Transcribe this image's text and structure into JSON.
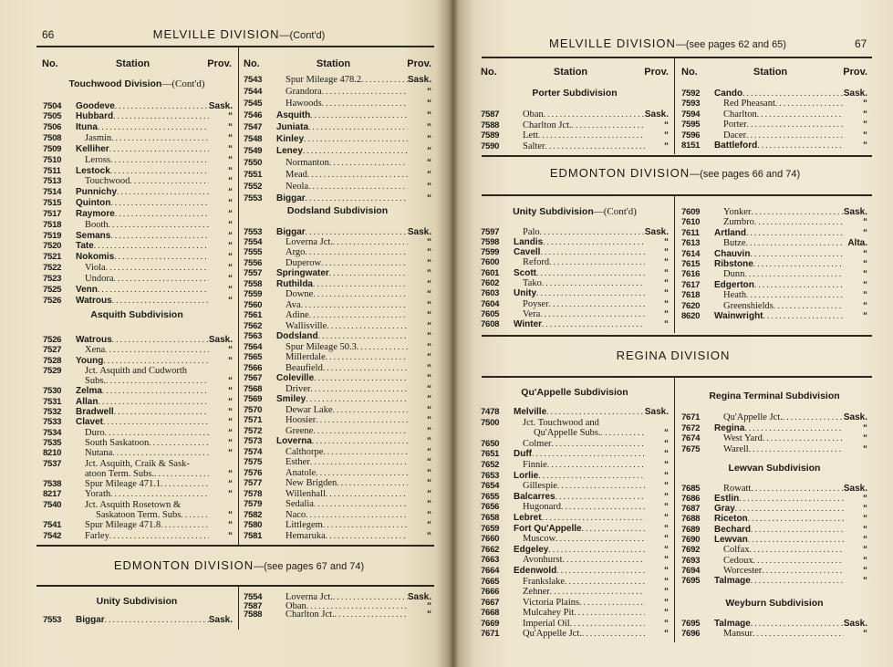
{
  "left_page": {
    "page_number": "66",
    "title": "MELVILLE DIVISION",
    "title_suffix": "—(Cont'd)",
    "col_headers": {
      "no": "No.",
      "station": "Station",
      "prov": "Prov."
    },
    "touchwood": {
      "heading": "Touchwood Division",
      "heading_suffix": "—(Cont'd)",
      "rows": [
        {
          "no": "7504",
          "name": "Goodeve",
          "prov": "Sask.",
          "bold": true
        },
        {
          "no": "7505",
          "name": "Hubbard",
          "prov": "“",
          "bold": true
        },
        {
          "no": "7506",
          "name": "Ituna",
          "prov": "“",
          "bold": true
        },
        {
          "no": "7508",
          "name": "Jasmin",
          "prov": "“"
        },
        {
          "no": "7509",
          "name": "Kelliher",
          "prov": "“",
          "bold": true
        },
        {
          "no": "7510",
          "name": "Leross",
          "prov": "“"
        },
        {
          "no": "7511",
          "name": "Lestock",
          "prov": "“",
          "bold": true
        },
        {
          "no": "7513",
          "name": "Touchwood",
          "prov": "“"
        },
        {
          "no": "7514",
          "name": "Punnichy",
          "prov": "“",
          "bold": true
        },
        {
          "no": "7515",
          "name": "Quinton",
          "prov": "“",
          "bold": true
        },
        {
          "no": "7517",
          "name": "Raymore",
          "prov": "“",
          "bold": true
        },
        {
          "no": "7518",
          "name": "Booth",
          "prov": "“"
        },
        {
          "no": "7519",
          "name": "Semans",
          "prov": "“",
          "bold": true
        },
        {
          "no": "7520",
          "name": "Tate",
          "prov": "“",
          "bold": true
        },
        {
          "no": "7521",
          "name": "Nokomis",
          "prov": "“",
          "bold": true
        },
        {
          "no": "7522",
          "name": "Viola",
          "prov": "“"
        },
        {
          "no": "7523",
          "name": "Undora",
          "prov": "“"
        },
        {
          "no": "7525",
          "name": "Venn",
          "prov": "“",
          "bold": true
        },
        {
          "no": "7526",
          "name": "Watrous",
          "prov": "“",
          "bold": true
        }
      ]
    },
    "asquith": {
      "heading": "Asquith Subdivision",
      "rows": [
        {
          "no": "7526",
          "name": "Watrous",
          "prov": "Sask.",
          "bold": true
        },
        {
          "no": "7527",
          "name": "Xena",
          "prov": "“"
        },
        {
          "no": "7528",
          "name": "Young",
          "prov": "“",
          "bold": true
        },
        {
          "no": "7529",
          "name": "Jct. Asquith and Cudworth",
          "line2": "Subs.",
          "prov": "“"
        },
        {
          "no": "7530",
          "name": "Zelma",
          "prov": "“",
          "bold": true
        },
        {
          "no": "7531",
          "name": "Allan",
          "prov": "“",
          "bold": true
        },
        {
          "no": "7532",
          "name": "Bradwell",
          "prov": "“",
          "bold": true
        },
        {
          "no": "7533",
          "name": "Clavet",
          "prov": "“",
          "bold": true
        },
        {
          "no": "7534",
          "name": "Duro",
          "prov": "“"
        },
        {
          "no": "7535",
          "name": "South Saskatoon",
          "prov": "“"
        },
        {
          "no": "8210",
          "name": "Nutana",
          "prov": "“"
        },
        {
          "no": "7537",
          "name": "Jct. Asquith, Craik & Sask-",
          "line2": "atoon Term. Subs.",
          "prov": "“"
        },
        {
          "no": "7538",
          "name": "Spur Mileage 471.1",
          "prov": "“"
        },
        {
          "no": "8217",
          "name": "Yorath",
          "prov": "“"
        },
        {
          "no": "7540",
          "name": "Jct. Asquith Rosetown &",
          "line2": "Saskatoon Term. Subs",
          "line2_wide": true,
          "prov": "“"
        },
        {
          "no": "7541",
          "name": "Spur Mileage 471.8",
          "prov": "“"
        },
        {
          "no": "7542",
          "name": "Farley",
          "prov": "“"
        }
      ]
    },
    "asquith_cont": {
      "rows": [
        {
          "no": "7543",
          "name": "Spur Mileage 478.2",
          "prov": "Sask."
        },
        {
          "no": "7544",
          "name": "Grandora",
          "prov": "“"
        },
        {
          "no": "7545",
          "name": "Hawoods",
          "prov": "“"
        },
        {
          "no": "7546",
          "name": "Asquith",
          "prov": "“",
          "bold": true
        },
        {
          "no": "7547",
          "name": "Juniata",
          "prov": "“",
          "bold": true
        },
        {
          "no": "7548",
          "name": "Kinley",
          "prov": "“",
          "bold": true
        },
        {
          "no": "7549",
          "name": "Leney",
          "prov": "“",
          "bold": true
        },
        {
          "no": "7550",
          "name": "Normanton",
          "prov": "“"
        },
        {
          "no": "7551",
          "name": "Mead",
          "prov": "“"
        },
        {
          "no": "7552",
          "name": "Neola",
          "prov": "“"
        },
        {
          "no": "7553",
          "name": "Biggar",
          "prov": "“",
          "bold": true
        }
      ]
    },
    "dodsland": {
      "heading": "Dodsland Subdivision",
      "rows": [
        {
          "no": "7553",
          "name": "Biggar",
          "prov": "Sask.",
          "bold": true
        },
        {
          "no": "7554",
          "name": "Loverna Jct.",
          "prov": "“"
        },
        {
          "no": "7555",
          "name": "Argo",
          "prov": "“"
        },
        {
          "no": "7556",
          "name": "Duperow",
          "prov": "“"
        },
        {
          "no": "7557",
          "name": "Springwater",
          "prov": "“",
          "bold": true
        },
        {
          "no": "7558",
          "name": "Ruthilda",
          "prov": "“",
          "bold": true
        },
        {
          "no": "7559",
          "name": "Downe",
          "prov": "“"
        },
        {
          "no": "7560",
          "name": "Ava",
          "prov": "“"
        },
        {
          "no": "7561",
          "name": "Adine",
          "prov": "“"
        },
        {
          "no": "7562",
          "name": "Wallisville",
          "prov": "“"
        },
        {
          "no": "7563",
          "name": "Dodsland",
          "prov": "“",
          "bold": true
        },
        {
          "no": "7564",
          "name": "Spur Mileage 50.3",
          "prov": "“"
        },
        {
          "no": "7565",
          "name": "Millerdale",
          "prov": "“"
        },
        {
          "no": "7566",
          "name": "Beaufield",
          "prov": "“"
        },
        {
          "no": "7567",
          "name": "Coleville",
          "prov": "“",
          "bold": true
        },
        {
          "no": "7568",
          "name": "Driver",
          "prov": "“"
        },
        {
          "no": "7569",
          "name": "Smiley",
          "prov": "“",
          "bold": true
        },
        {
          "no": "7570",
          "name": "Dewar Lake",
          "prov": "“"
        },
        {
          "no": "7571",
          "name": "Hoosier",
          "prov": "“"
        },
        {
          "no": "7572",
          "name": "Greene",
          "prov": "“"
        },
        {
          "no": "7573",
          "name": "Loverna",
          "prov": "“",
          "bold": true
        },
        {
          "no": "7574",
          "name": "Calthorpe",
          "prov": "“"
        },
        {
          "no": "7575",
          "name": "Esther",
          "prov": "“"
        },
        {
          "no": "7576",
          "name": "Anatole",
          "prov": "“"
        },
        {
          "no": "7577",
          "name": "New Brigden",
          "prov": "“"
        },
        {
          "no": "7578",
          "name": "Willenhall",
          "prov": "“"
        },
        {
          "no": "7579",
          "name": "Sedalia",
          "prov": "“"
        },
        {
          "no": "7582",
          "name": "Naco",
          "prov": "“"
        },
        {
          "no": "7580",
          "name": "Littlegem",
          "prov": "“"
        },
        {
          "no": "7581",
          "name": "Hemaruka",
          "prov": "“"
        }
      ]
    },
    "edmonton": {
      "title": "EDMONTON DIVISION",
      "title_suffix": "—(see pages 67 and 74)",
      "unity": {
        "heading": "Unity Subdivision",
        "rows": [
          {
            "no": "7553",
            "name": "Biggar",
            "prov": "Sask.",
            "bold": true
          }
        ]
      },
      "unity_cont": {
        "rows": [
          {
            "no": "7554",
            "name": "Loverna Jct.",
            "prov": "Sask."
          },
          {
            "no": "7587",
            "name": "Oban",
            "prov": "“"
          },
          {
            "no": "7588",
            "name": "Charlton Jct.",
            "prov": "“"
          }
        ]
      }
    }
  },
  "right_page": {
    "page_number": "67",
    "title": "MELVILLE DIVISION",
    "title_suffix": "—(see pages 62 and 65)",
    "col_headers": {
      "no": "No.",
      "station": "Station",
      "prov": "Prov."
    },
    "porter": {
      "heading": "Porter Subdivision",
      "rows": [
        {
          "no": "7587",
          "name": "Oban",
          "prov": "Sask."
        },
        {
          "no": "7588",
          "name": "Charlton Jct.",
          "prov": "“"
        },
        {
          "no": "7589",
          "name": "Lett",
          "prov": "“"
        },
        {
          "no": "7590",
          "name": "Salter",
          "prov": "“"
        }
      ]
    },
    "porter_cont": {
      "rows": [
        {
          "no": "7592",
          "name": "Cando",
          "prov": "Sask.",
          "bold": true
        },
        {
          "no": "7593",
          "name": "Red Pheasant",
          "prov": "“"
        },
        {
          "no": "7594",
          "name": "Charlton",
          "prov": "“"
        },
        {
          "no": "7595",
          "name": "Porter",
          "prov": "“"
        },
        {
          "no": "7596",
          "name": "Dacer",
          "prov": "“"
        },
        {
          "no": "8151",
          "name": "Battleford",
          "prov": "“",
          "bold": true
        }
      ]
    },
    "edmonton": {
      "title": "EDMONTON DIVISION",
      "title_suffix": "—(see pages 66 and 74)",
      "unity": {
        "heading": "Unity Subdivision",
        "heading_suffix": "—(Cont'd)",
        "rows": [
          {
            "no": "7597",
            "name": "Palo",
            "prov": "Sask."
          },
          {
            "no": "7598",
            "name": "Landis",
            "prov": "“",
            "bold": true
          },
          {
            "no": "7599",
            "name": "Cavell",
            "prov": "“",
            "bold": true
          },
          {
            "no": "7600",
            "name": "Reford",
            "prov": "“"
          },
          {
            "no": "7601",
            "name": "Scott",
            "prov": "“",
            "bold": true
          },
          {
            "no": "7602",
            "name": "Tako",
            "prov": "“"
          },
          {
            "no": "7603",
            "name": "Unity",
            "prov": "“",
            "bold": true
          },
          {
            "no": "7604",
            "name": "Poyser",
            "prov": "“"
          },
          {
            "no": "7605",
            "name": "Vera",
            "prov": "“"
          },
          {
            "no": "7608",
            "name": "Winter",
            "prov": "“",
            "bold": true
          }
        ]
      },
      "unity_cont": {
        "rows": [
          {
            "no": "7609",
            "name": "Yonker",
            "prov": "Sask."
          },
          {
            "no": "7610",
            "name": "Zumbro",
            "prov": "“"
          },
          {
            "no": "7611",
            "name": "Artland",
            "prov": "“",
            "bold": true
          },
          {
            "no": "7613",
            "name": "Butze",
            "prov": "Alta."
          },
          {
            "no": "7614",
            "name": "Chauvin",
            "prov": "“",
            "bold": true
          },
          {
            "no": "7615",
            "name": "Ribstone",
            "prov": "“",
            "bold": true
          },
          {
            "no": "7616",
            "name": "Dunn",
            "prov": "“"
          },
          {
            "no": "7617",
            "name": "Edgerton",
            "prov": "“",
            "bold": true
          },
          {
            "no": "7618",
            "name": "Heath",
            "prov": "“"
          },
          {
            "no": "7620",
            "name": "Greenshields",
            "prov": "“"
          },
          {
            "no": "8620",
            "name": "Wainwright",
            "prov": "“",
            "bold": true
          }
        ]
      }
    },
    "regina": {
      "title": "REGINA DIVISION",
      "quappelle": {
        "heading": "Qu'Appelle Subdivision",
        "rows": [
          {
            "no": "7478",
            "name": "Melville",
            "prov": "Sask.",
            "bold": true
          },
          {
            "no": "7500",
            "name": "Jct. Touchwood and",
            "line2": "Qu'Appelle Subs.",
            "line2_wide": true,
            "prov": "“"
          },
          {
            "no": "7650",
            "name": "Colmer",
            "prov": "“"
          },
          {
            "no": "7651",
            "name": "Duff",
            "prov": "“",
            "bold": true
          },
          {
            "no": "7652",
            "name": "Finnie",
            "prov": "“"
          },
          {
            "no": "7653",
            "name": "Lorlie",
            "prov": "“",
            "bold": true
          },
          {
            "no": "7654",
            "name": "Gillespie",
            "prov": "“"
          },
          {
            "no": "7655",
            "name": "Balcarres",
            "prov": "“",
            "bold": true
          },
          {
            "no": "7656",
            "name": "Hugonard",
            "prov": "“"
          },
          {
            "no": "7658",
            "name": "Lebret",
            "prov": "“",
            "bold": true
          },
          {
            "no": "7659",
            "name": "Fort Qu'Appelle",
            "prov": "“",
            "bold": true
          },
          {
            "no": "7660",
            "name": "Muscow",
            "prov": "“"
          },
          {
            "no": "7662",
            "name": "Edgeley",
            "prov": "“",
            "bold": true
          },
          {
            "no": "7663",
            "name": "Avonhurst",
            "prov": "“"
          },
          {
            "no": "7664",
            "name": "Edenwold",
            "prov": "“",
            "bold": true
          },
          {
            "no": "7665",
            "name": "Frankslake",
            "prov": "“"
          },
          {
            "no": "7666",
            "name": "Zehner",
            "prov": "“"
          },
          {
            "no": "7667",
            "name": "Victoria Plains",
            "prov": "“"
          },
          {
            "no": "7668",
            "name": "Mulcahey Pit",
            "prov": "“"
          },
          {
            "no": "7669",
            "name": "Imperial Oil",
            "prov": "“"
          },
          {
            "no": "7671",
            "name": "Qu'Appelle Jct.",
            "prov": "“"
          }
        ]
      },
      "regina_terminal": {
        "heading": "Regina Terminal Subdivision",
        "rows": [
          {
            "no": "7671",
            "name": "Qu'Appelle Jct.",
            "prov": "Sask."
          },
          {
            "no": "7672",
            "name": "Regina",
            "prov": "“",
            "bold": true
          },
          {
            "no": "7674",
            "name": "West Yard",
            "prov": "“"
          },
          {
            "no": "7675",
            "name": "Warell",
            "prov": "“"
          }
        ]
      },
      "lewvan": {
        "heading": "Lewvan Subdivision",
        "rows": [
          {
            "no": "7685",
            "name": "Rowatt",
            "prov": "Sask."
          },
          {
            "no": "7686",
            "name": "Estlin",
            "prov": "“",
            "bold": true
          },
          {
            "no": "7687",
            "name": "Gray",
            "prov": "“",
            "bold": true
          },
          {
            "no": "7688",
            "name": "Riceton",
            "prov": "“",
            "bold": true
          },
          {
            "no": "7689",
            "name": "Bechard",
            "prov": "“",
            "bold": true
          },
          {
            "no": "7690",
            "name": "Lewvan",
            "prov": "“",
            "bold": true
          },
          {
            "no": "7692",
            "name": "Colfax",
            "prov": "“"
          },
          {
            "no": "7693",
            "name": "Cedoux",
            "prov": "“"
          },
          {
            "no": "7694",
            "name": "Worcester",
            "prov": "“"
          },
          {
            "no": "7695",
            "name": "Talmage",
            "prov": "“",
            "bold": true
          }
        ]
      },
      "weyburn": {
        "heading": "Weyburn Subdivision",
        "rows": [
          {
            "no": "7695",
            "name": "Talmage",
            "prov": "Sask.",
            "bold": true
          },
          {
            "no": "7696",
            "name": "Mansur",
            "prov": "“"
          }
        ]
      }
    }
  }
}
